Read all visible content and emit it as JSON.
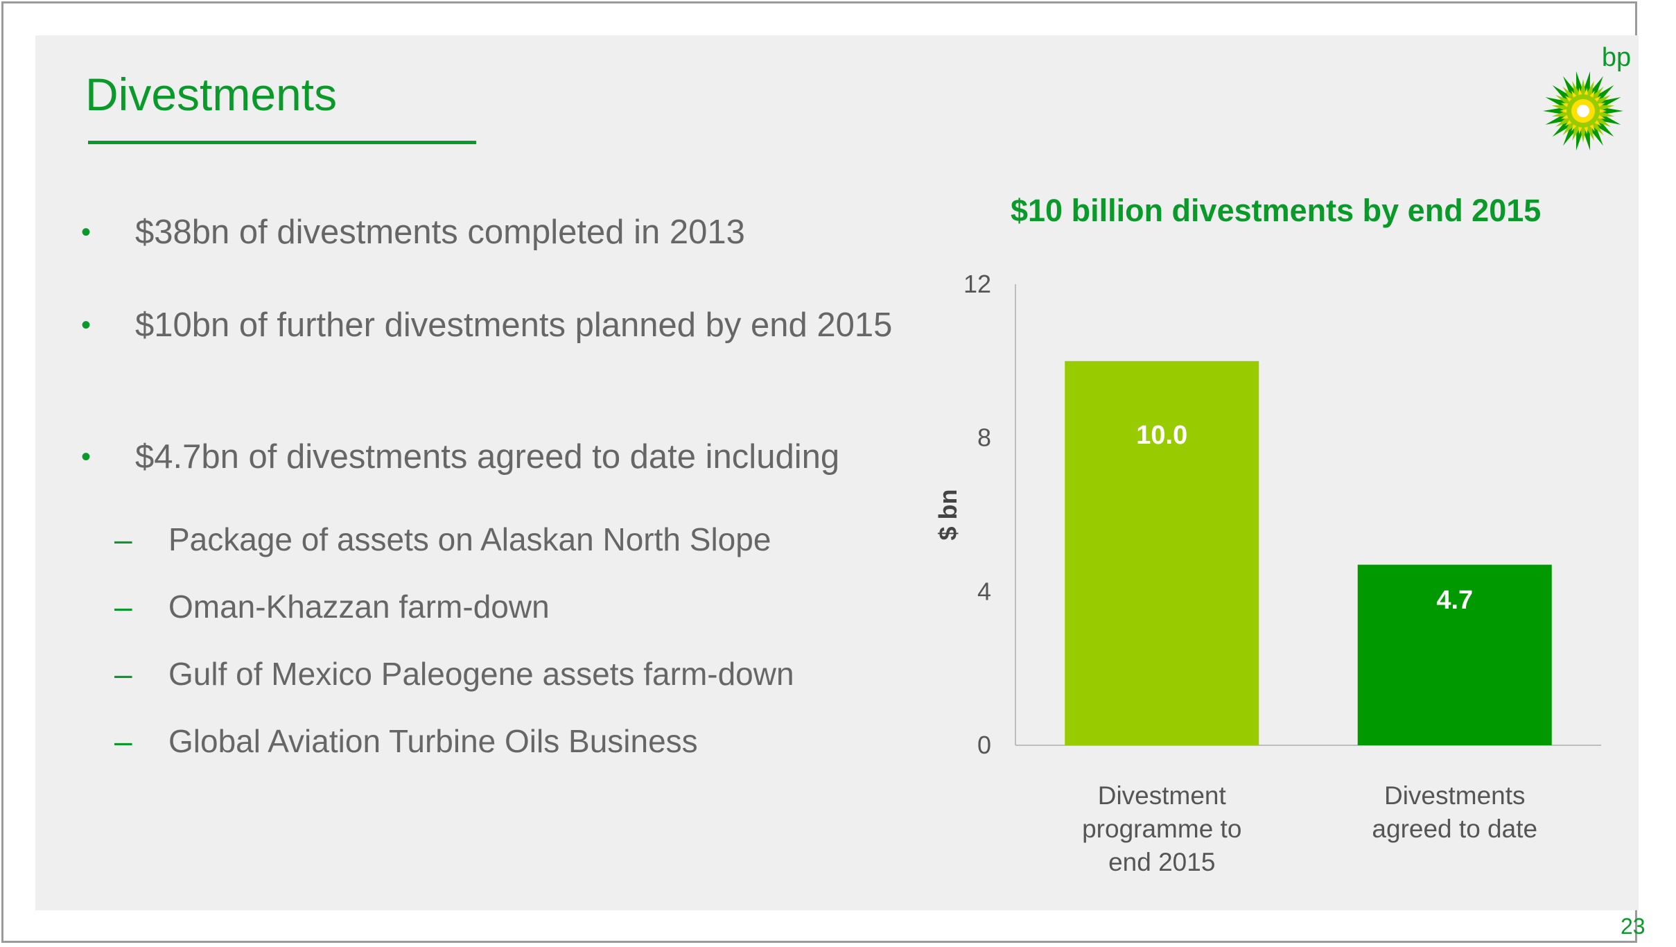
{
  "slide": {
    "title": "Divestments",
    "page_number": "23",
    "logo_text": "bp",
    "bullets": [
      "$38bn of divestments completed in 2013",
      "$10bn of further divestments planned by end 2015",
      "$4.7bn of divestments agreed to date including"
    ],
    "bullet_marker": "•",
    "sub_marker": "–",
    "sub_bullets": [
      "Package of assets on Alaskan North Slope",
      "Oman-Khazzan farm-down",
      "Gulf of Mexico Paleogene assets farm-down",
      "Global Aviation Turbine Oils Business"
    ]
  },
  "colors": {
    "brand_green": "#0a9a2a",
    "bar_light_green": "#99cc00",
    "bar_dark_green": "#009900",
    "text_gray": "#666666"
  },
  "chart_data": {
    "type": "bar",
    "title": "$10 billion divestments by end 2015",
    "ylabel": "$ bn",
    "xlabel": "",
    "ylim": [
      0,
      12
    ],
    "yticks": [
      0,
      4,
      8,
      12
    ],
    "categories": [
      [
        "Divestment",
        "programme to",
        "end 2015"
      ],
      [
        "Divestments",
        "agreed to date"
      ]
    ],
    "values": [
      10.0,
      4.7
    ],
    "value_labels": [
      "10.0",
      "4.7"
    ],
    "bar_colors": [
      "#99cc00",
      "#009900"
    ],
    "grid": false,
    "legend": "none"
  }
}
